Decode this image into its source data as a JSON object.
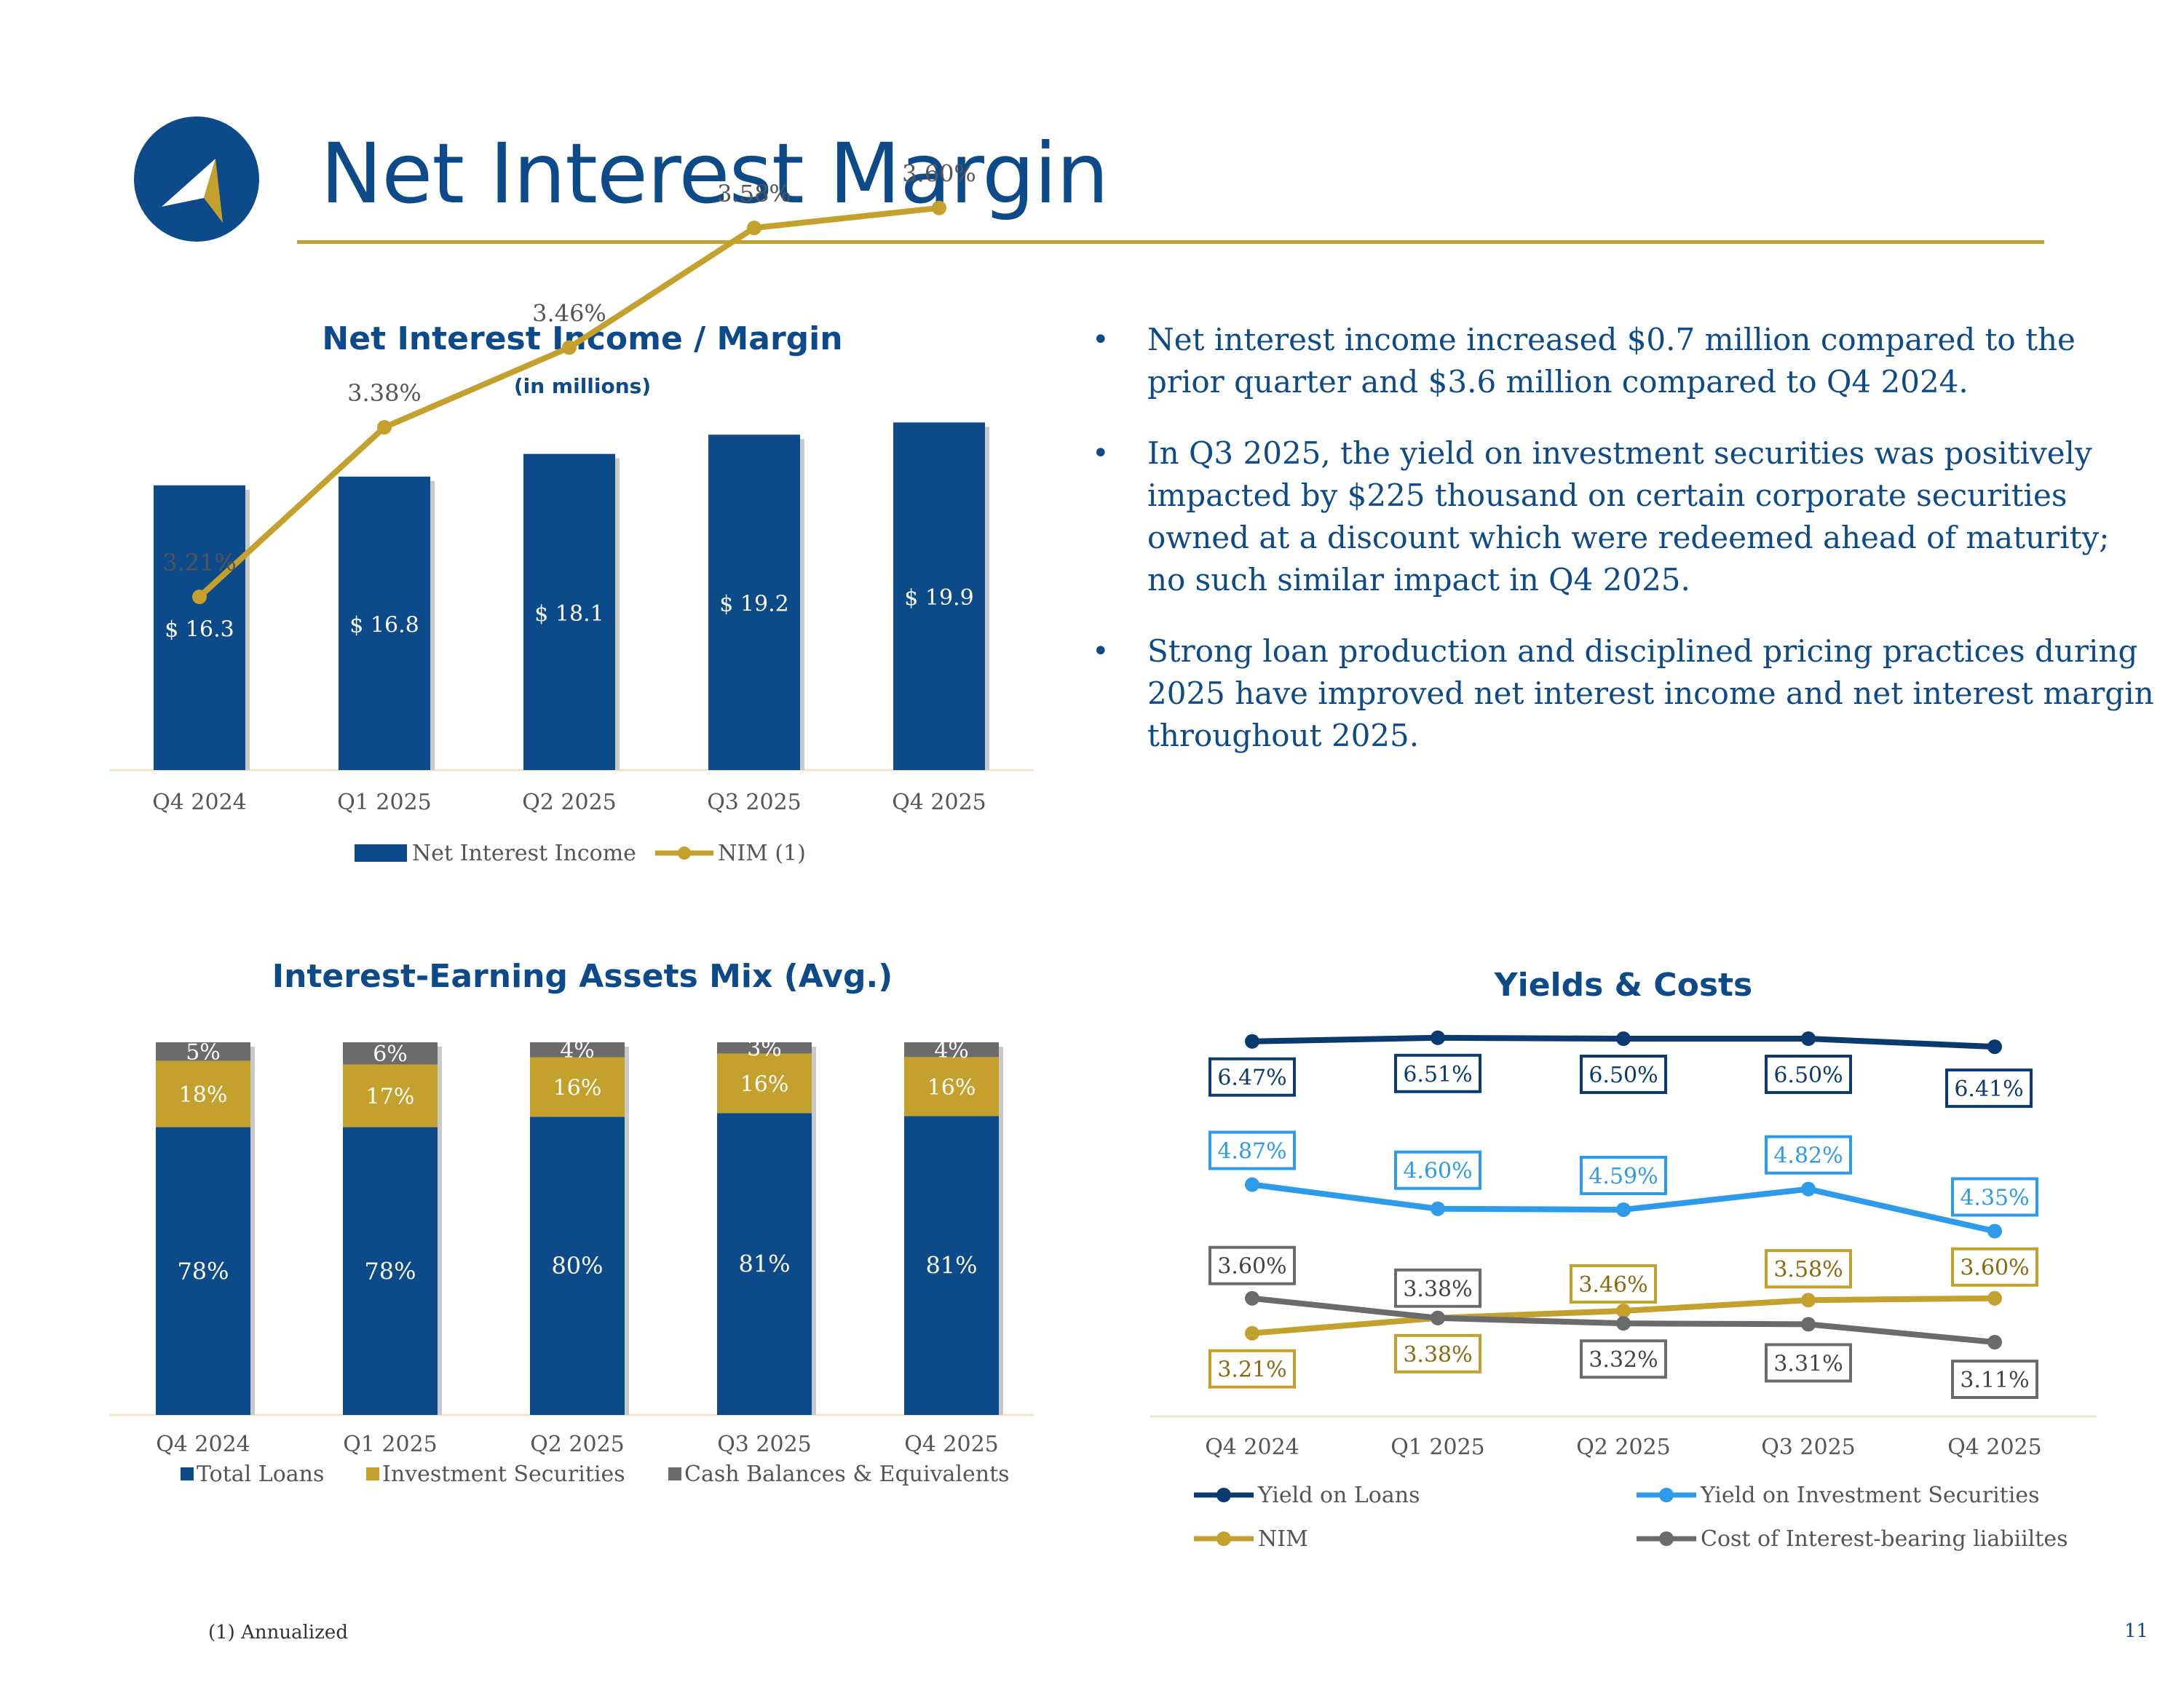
{
  "page_title": "Net Interest Margin",
  "bullets": [
    "Net interest income increased $0.7 million compared to the prior quarter and $3.6 million compared to Q4 2024.",
    "In Q3 2025, the yield on investment securities was positively impacted by $225 thousand on certain corporate securities owned at a discount which were redeemed ahead of maturity; no such similar impact in Q4 2025.",
    "Strong loan production and disciplined pricing practices during 2025 have improved net interest income and net interest margin throughout 2025."
  ],
  "footnote": "(1) Annualized",
  "page_number": "11",
  "colors": {
    "navy": "#0d4a8a",
    "gold": "#c4a02d",
    "gray": "#6b6b6b",
    "lightblue": "#2e9aea",
    "darknavy": "#0a3a70"
  },
  "chart_data": [
    {
      "type": "bar",
      "title": "Net Interest Income / Margin",
      "subtitle": "(in millions)",
      "categories": [
        "Q4 2024",
        "Q1 2025",
        "Q2 2025",
        "Q3 2025",
        "Q4 2025"
      ],
      "series": [
        {
          "name": "Net Interest Income",
          "kind": "bar",
          "values": [
            16.3,
            16.8,
            18.1,
            19.2,
            19.9
          ],
          "labels": [
            "$ 16.3",
            "$ 16.8",
            "$ 18.1",
            "$ 19.2",
            "$ 19.9"
          ],
          "color": "#0d4a8a"
        },
        {
          "name": "NIM (1)",
          "kind": "line",
          "values": [
            3.21,
            3.38,
            3.46,
            3.58,
            3.6
          ],
          "labels": [
            "3.21%",
            "3.38%",
            "3.46%",
            "3.58%",
            "3.60%"
          ],
          "color": "#c4a02d"
        }
      ],
      "legend": "bottom"
    },
    {
      "type": "bar",
      "stacked": true,
      "title": "Interest-Earning Assets Mix (Avg.)",
      "categories": [
        "Q4 2024",
        "Q1 2025",
        "Q2 2025",
        "Q3 2025",
        "Q4 2025"
      ],
      "series": [
        {
          "name": "Total Loans",
          "values": [
            78,
            78,
            80,
            81,
            81
          ],
          "labels": [
            "78%",
            "78%",
            "80%",
            "81%",
            "81%"
          ],
          "color": "#0d4a8a"
        },
        {
          "name": "Investment Securities",
          "values": [
            18,
            17,
            16,
            16,
            16
          ],
          "labels": [
            "18%",
            "17%",
            "16%",
            "16%",
            "16%"
          ],
          "color": "#c4a02d"
        },
        {
          "name": "Cash Balances & Equivalents",
          "values": [
            5,
            6,
            4,
            3,
            4
          ],
          "labels": [
            "5%",
            "6%",
            "4%",
            "3%",
            "4%"
          ],
          "color": "#6b6b6b"
        }
      ],
      "legend": "bottom"
    },
    {
      "type": "line",
      "title": "Yields & Costs",
      "categories": [
        "Q4 2024",
        "Q1 2025",
        "Q2 2025",
        "Q3 2025",
        "Q4 2025"
      ],
      "series": [
        {
          "name": "Yield on Loans",
          "values": [
            6.47,
            6.51,
            6.5,
            6.5,
            6.41
          ],
          "labels": [
            "6.47%",
            "6.51%",
            "6.50%",
            "6.50%",
            "6.41%"
          ],
          "color": "#0a3a70"
        },
        {
          "name": "Yield on Investment Securities",
          "values": [
            4.87,
            4.6,
            4.59,
            4.82,
            4.35
          ],
          "labels": [
            "4.87%",
            "4.60%",
            "4.59%",
            "4.82%",
            "4.35%"
          ],
          "color": "#2e9aea"
        },
        {
          "name": "NIM",
          "values": [
            3.21,
            3.38,
            3.46,
            3.58,
            3.6
          ],
          "labels": [
            "3.21%",
            "3.38%",
            "3.46%",
            "3.58%",
            "3.60%"
          ],
          "color": "#c4a02d"
        },
        {
          "name": "Cost of Interest-bearing liabiiltes",
          "values": [
            3.6,
            3.38,
            3.32,
            3.31,
            3.11
          ],
          "labels": [
            "3.60%",
            "3.38%",
            "3.32%",
            "3.31%",
            "3.11%"
          ],
          "color": "#6b6b6b"
        }
      ],
      "legend": "bottom"
    }
  ]
}
